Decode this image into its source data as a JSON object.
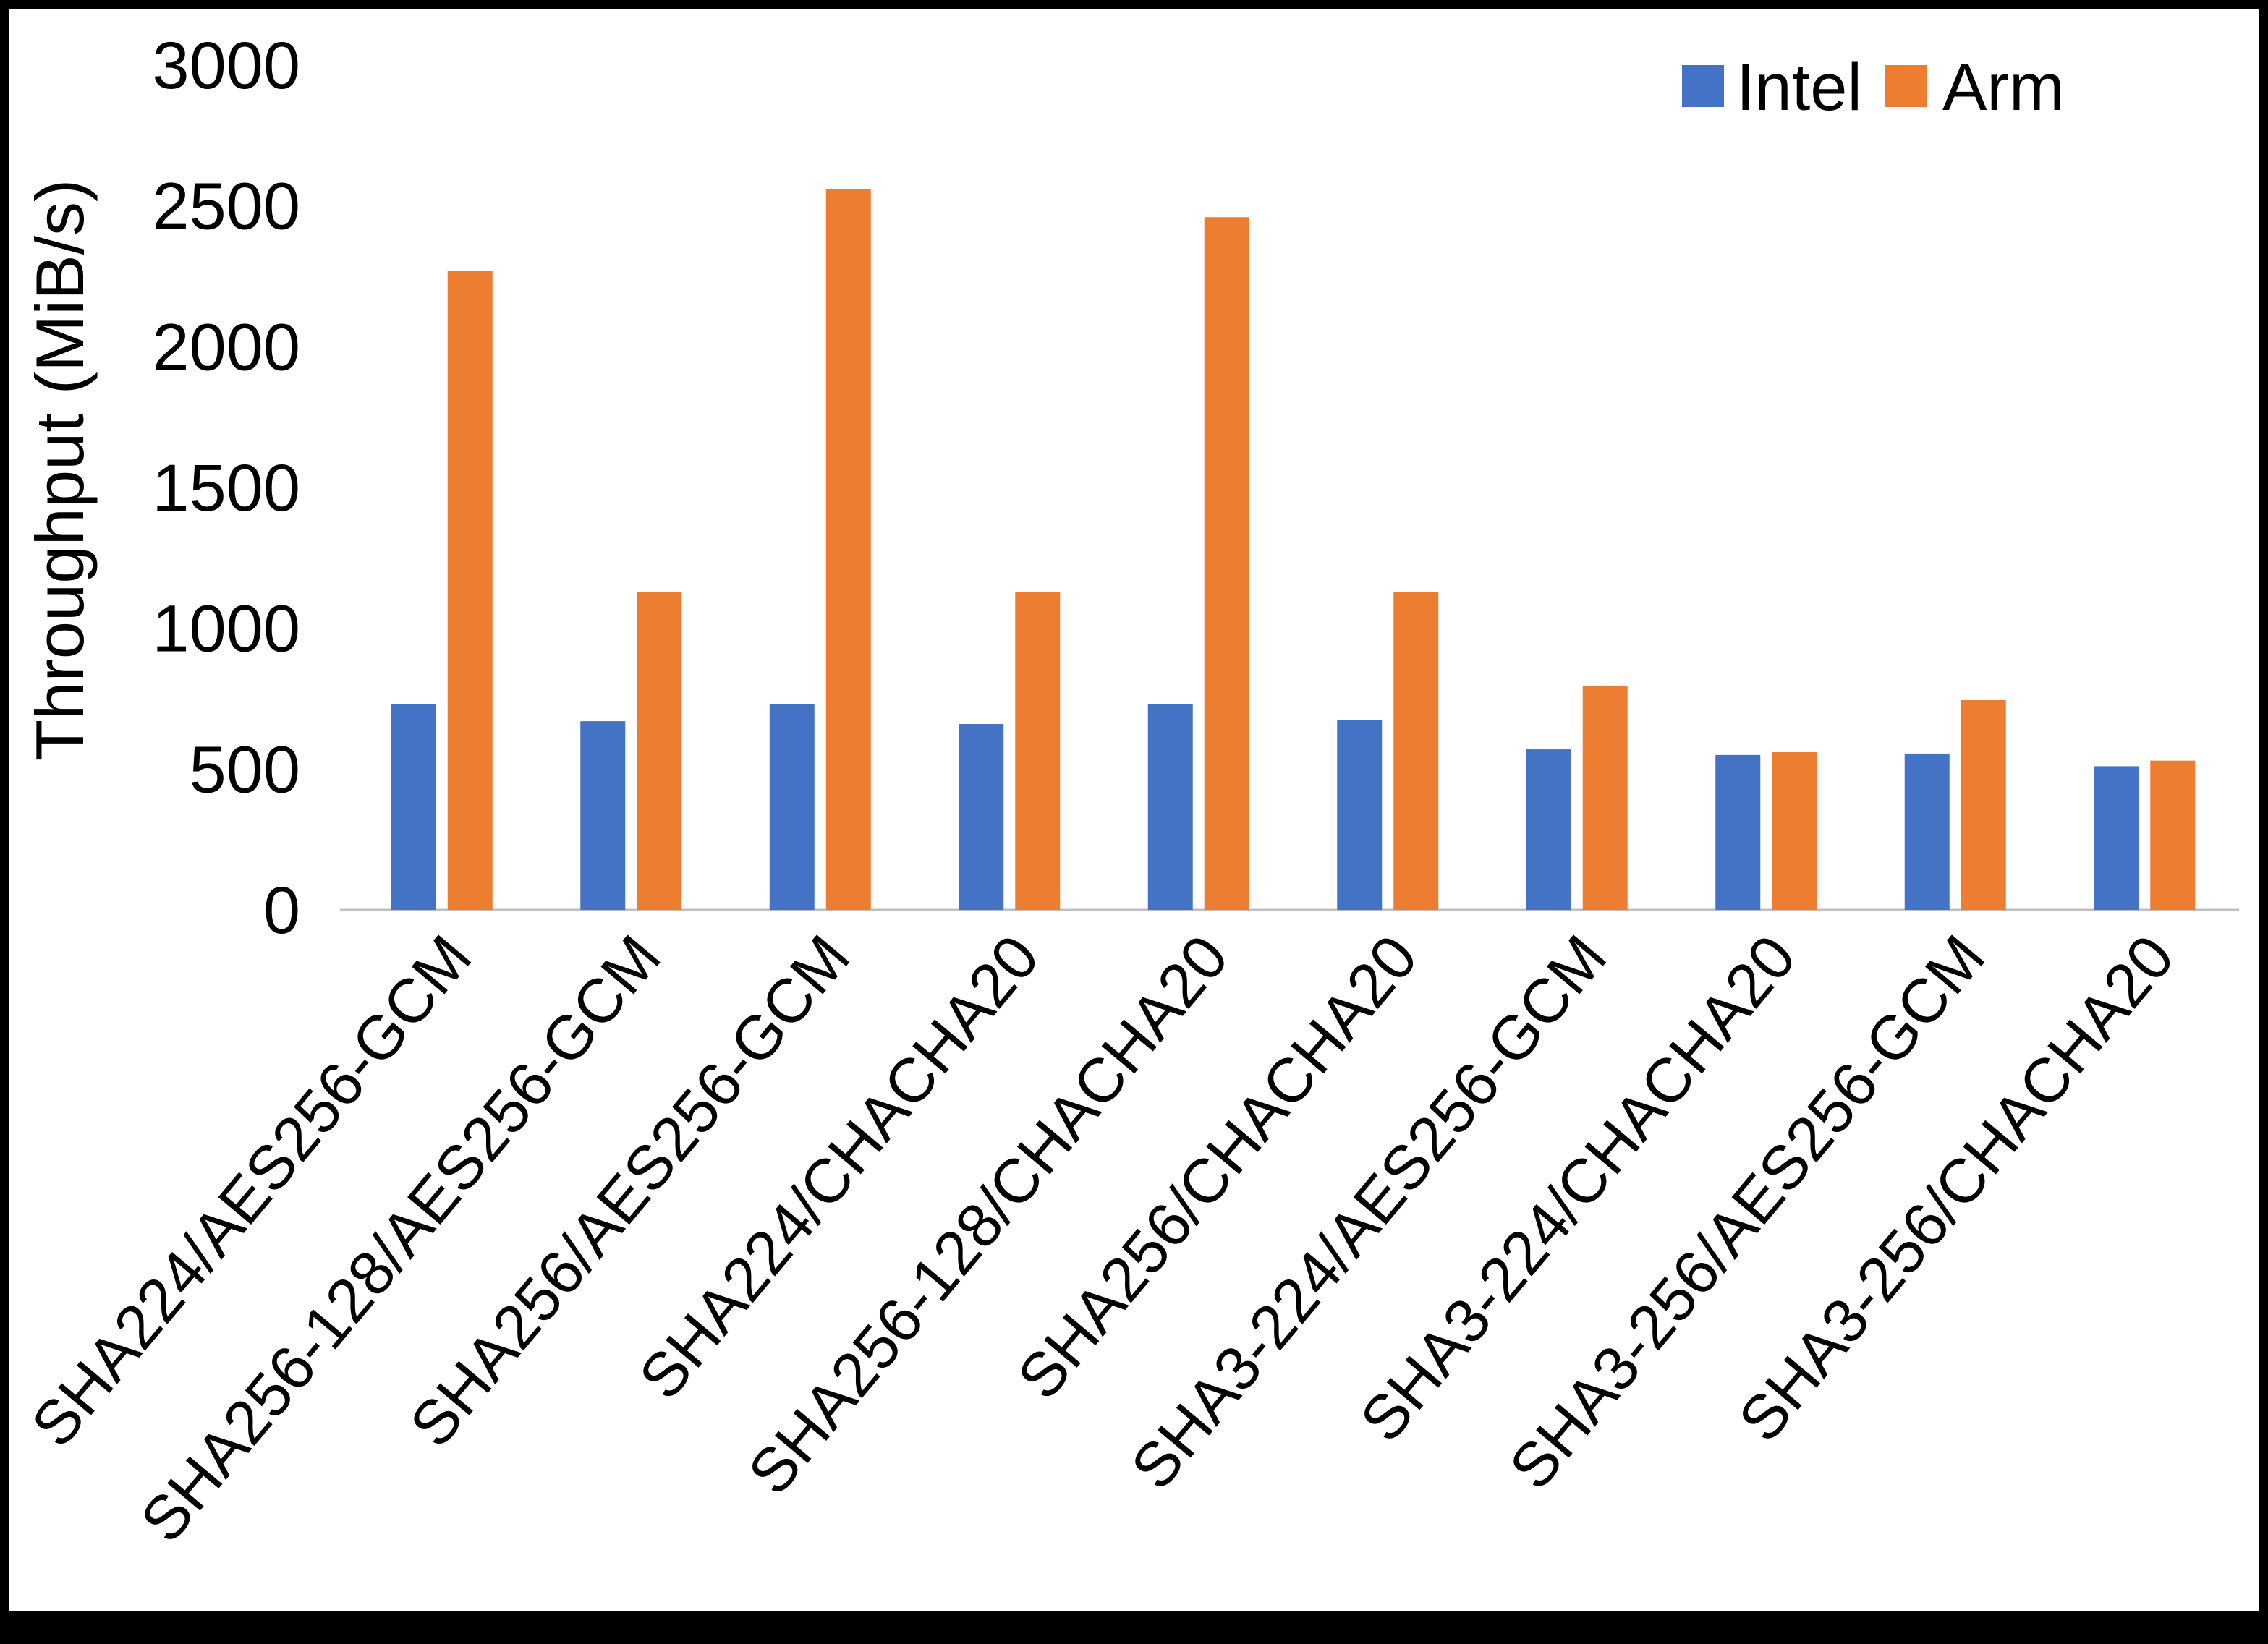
{
  "chart_data": {
    "type": "bar",
    "title": "",
    "ylabel": "Throughput (MiB/s)",
    "xlabel": "",
    "ylim": [
      0,
      3000
    ],
    "yticks": [
      0,
      500,
      1000,
      1500,
      2000,
      2500,
      3000
    ],
    "grid": false,
    "legend_position": "top-right",
    "bar_orientation": "vertical",
    "axis_line_color": "#BFBFBF",
    "frame_color": "#000000",
    "background_color": "#FFFFFF",
    "categories": [
      "SHA224/AES256-GCM",
      "SHA256-128/AES256-GCM",
      "SHA256/AES256-GCM",
      "SHA224/CHACHA20",
      "SHA256-128/CHACHA20",
      "SHA256/CHACHA20",
      "SHA3-224/AES256-GCM",
      "SHA3-224/CHACHA20",
      "SHA3-256/AES256-GCM",
      "SHA3-256/CHACHA20"
    ],
    "series": [
      {
        "name": "Intel",
        "color": "#4472C4",
        "values": [
          730,
          670,
          730,
          660,
          730,
          675,
          570,
          550,
          555,
          510
        ]
      },
      {
        "name": "Arm",
        "color": "#ED7D31",
        "values": [
          2270,
          1130,
          2560,
          1130,
          2460,
          1130,
          795,
          560,
          745,
          530
        ]
      }
    ]
  }
}
